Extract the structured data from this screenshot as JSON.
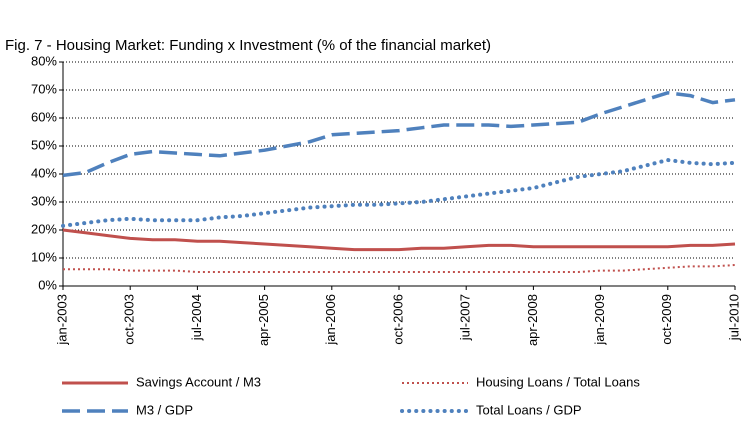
{
  "chart_data": {
    "type": "line",
    "title": "Fig. 7 - Housing Market: Funding x Investment (% of the financial market)",
    "categories": [
      "jan-2003",
      null,
      null,
      "oct-2003",
      null,
      null,
      "jul-2004",
      null,
      null,
      "apr-2005",
      null,
      null,
      "jan-2006",
      null,
      null,
      "oct-2006",
      null,
      null,
      "jul-2007",
      null,
      null,
      "apr-2008",
      null,
      null,
      "jan-2009",
      null,
      null,
      "oct-2009",
      null,
      null,
      "jul-2010"
    ],
    "series": [
      {
        "name": "Savings Account / M3",
        "color": "#c0504d",
        "style": "solid",
        "values": [
          20,
          19,
          18,
          17,
          16.5,
          16.5,
          16,
          16,
          15.5,
          15,
          14.5,
          14,
          13.5,
          13,
          13,
          13,
          13.5,
          13.5,
          14,
          14.5,
          14.5,
          14,
          14,
          14,
          14,
          14,
          14,
          14,
          14.5,
          14.5,
          15
        ]
      },
      {
        "name": "Housing Loans / Total Loans",
        "color": "#c0504d",
        "style": "dotted",
        "values": [
          6,
          6,
          6,
          5.5,
          5.5,
          5.5,
          5,
          5,
          5,
          5,
          5,
          5,
          5,
          5,
          5,
          5,
          5,
          5,
          5,
          5,
          5,
          5,
          5,
          5,
          5.5,
          5.5,
          6,
          6.5,
          7,
          7,
          7.5
        ]
      },
      {
        "name": "M3 / GDP",
        "color": "#4f81bd",
        "style": "dashed",
        "values": [
          39.5,
          40.5,
          44,
          47,
          48,
          47.5,
          47,
          46.5,
          47.5,
          48.5,
          50,
          51.5,
          54,
          54.5,
          55,
          55.5,
          56.5,
          57.5,
          57.5,
          57.5,
          57,
          57.5,
          58,
          58.5,
          61.5,
          64,
          66.5,
          69,
          68,
          65.5,
          66.5
        ]
      },
      {
        "name": "Total Loans / GDP",
        "color": "#4f81bd",
        "style": "bigdots",
        "values": [
          21.5,
          22.5,
          23.5,
          24,
          23.5,
          23.5,
          23.5,
          24.5,
          25,
          26,
          27,
          28,
          28.5,
          29,
          29,
          29.5,
          30,
          31,
          32,
          33,
          34,
          35,
          37,
          39,
          40,
          41,
          43,
          45,
          44,
          43.5,
          44
        ]
      }
    ],
    "ylim": [
      0,
      80
    ],
    "yticks": [
      {
        "value": 0,
        "label": "0%"
      },
      {
        "value": 10,
        "label": "10%"
      },
      {
        "value": 20,
        "label": "20%"
      },
      {
        "value": 30,
        "label": "30%"
      },
      {
        "value": 40,
        "label": "40%"
      },
      {
        "value": 50,
        "label": "50%"
      },
      {
        "value": 60,
        "label": "60%"
      },
      {
        "value": 70,
        "label": "70%"
      },
      {
        "value": 80,
        "label": "80%"
      }
    ],
    "grid": true,
    "legend": "bottom"
  }
}
